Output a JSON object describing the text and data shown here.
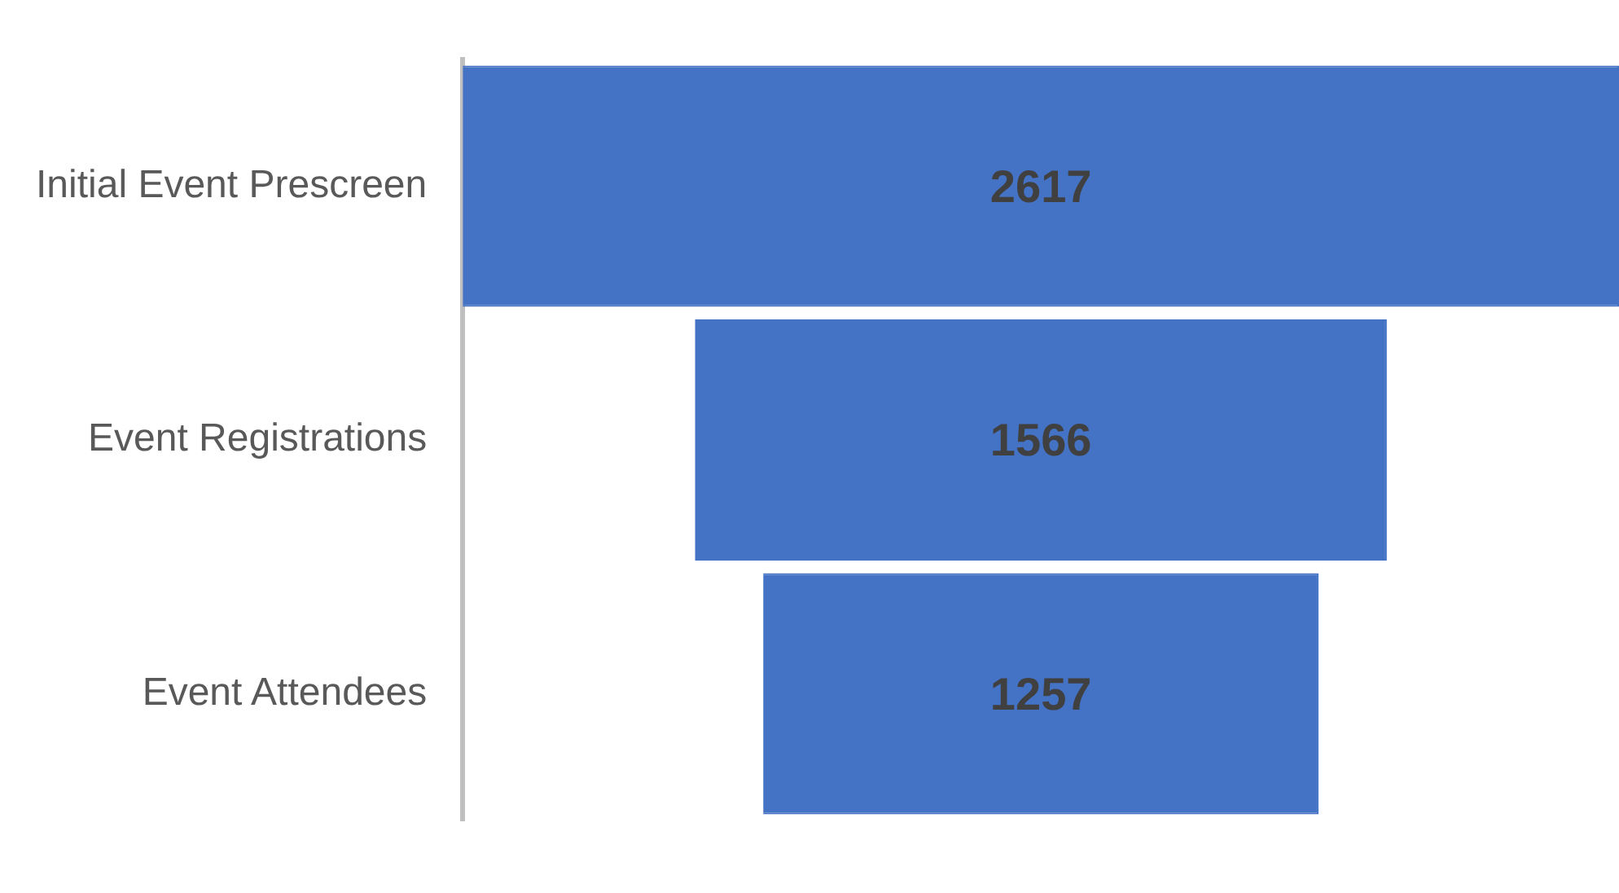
{
  "chart_data": {
    "type": "other",
    "categories": [
      "Initial Event Prescreen",
      "Event Registrations",
      "Event Attendees"
    ],
    "values": [
      2617,
      1566,
      1257
    ],
    "color": "#4472c4",
    "data_labels": true
  }
}
